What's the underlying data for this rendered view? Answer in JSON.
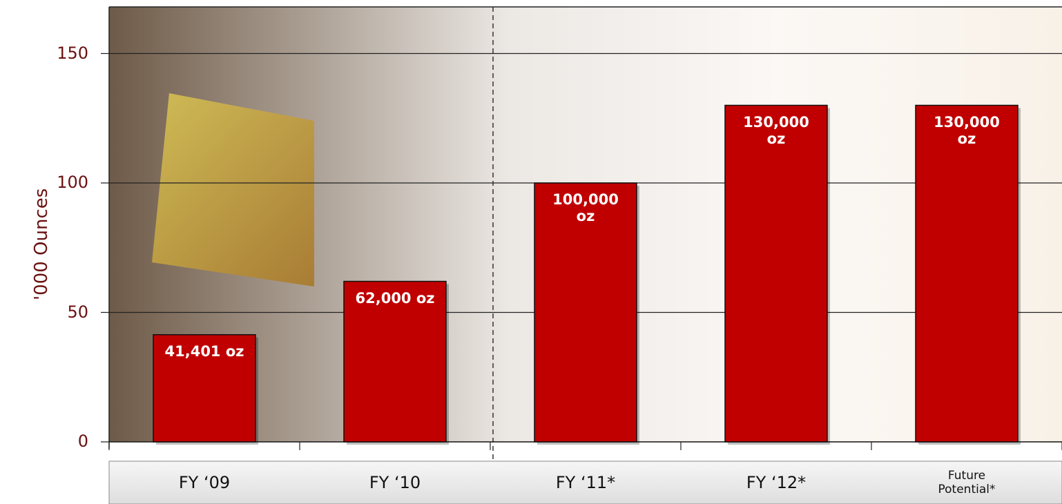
{
  "chart_data": {
    "type": "bar",
    "y_label": "'000 Ounces",
    "categories": [
      "FY ‘09",
      "FY ‘10",
      "FY ‘11*",
      "FY ‘12*",
      "Future Potential*"
    ],
    "values": [
      41.401,
      62,
      100,
      130,
      130
    ],
    "value_labels": [
      "41,401 oz",
      "62,000 oz",
      "100,000 oz",
      "130,000 oz",
      "130,000 oz"
    ],
    "color": "#c00000",
    "ylim": [
      0,
      168
    ],
    "yticks": [
      0,
      50,
      100,
      150
    ],
    "grid": true
  }
}
